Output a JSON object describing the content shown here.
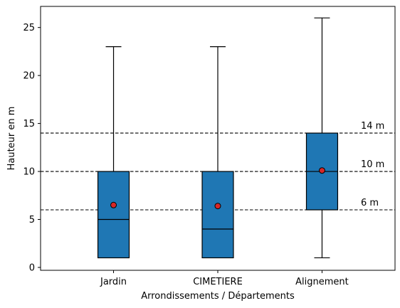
{
  "chart_data": {
    "type": "box",
    "xlabel": "Arrondissements / Départements",
    "ylabel": "Hauteur en m",
    "ylim": [
      -0.3,
      27.2
    ],
    "yticks": [
      0,
      5,
      10,
      15,
      20,
      25
    ],
    "categories": [
      "Jardin",
      "CIMETIERE",
      "Alignement"
    ],
    "boxes": [
      {
        "whisker_low": 1,
        "q1": 1,
        "median": 5,
        "q3": 10,
        "whisker_high": 23,
        "mean": 6.5
      },
      {
        "whisker_low": 1,
        "q1": 1,
        "median": 4,
        "q3": 10,
        "whisker_high": 23,
        "mean": 6.4
      },
      {
        "whisker_low": 1,
        "q1": 6,
        "median": 10,
        "q3": 14,
        "whisker_high": 26,
        "mean": 10.1
      }
    ],
    "reference_lines": [
      {
        "value": 14,
        "label": "14 m"
      },
      {
        "value": 10,
        "label": "10 m"
      },
      {
        "value": 6,
        "label": "6 m"
      }
    ],
    "grid": false,
    "legend": "none",
    "colors": {
      "box_fill": "#1f77b4",
      "box_edge": "#000000",
      "mean_marker": "#d62728",
      "lines": "#000000"
    }
  }
}
